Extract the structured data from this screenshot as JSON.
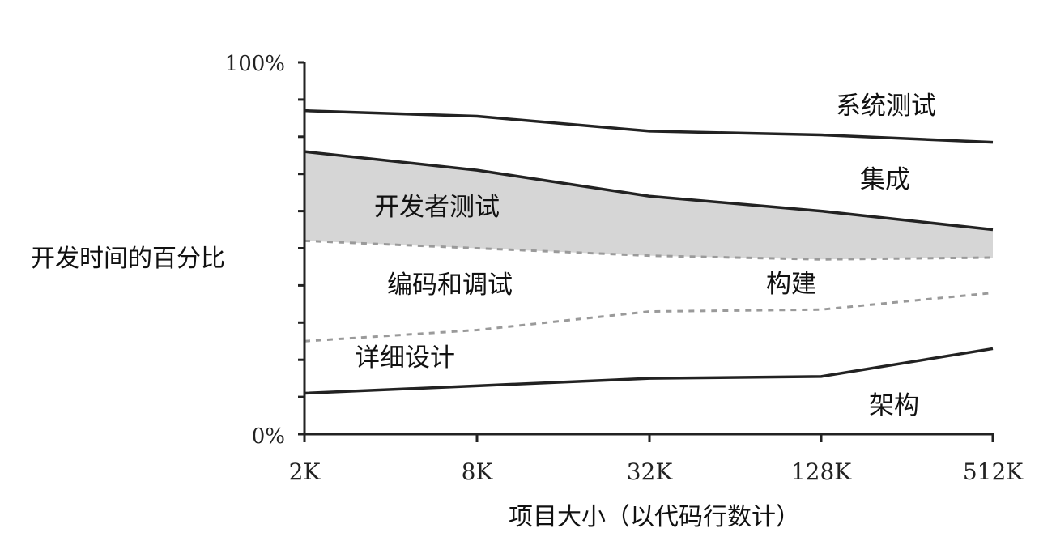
{
  "chart_data": {
    "type": "area",
    "title": "",
    "xlabel": "项目大小（以代码行数计）",
    "ylabel": "开发时间的百分比",
    "x_categories": [
      "2K",
      "8K",
      "32K",
      "128K",
      "512K"
    ],
    "y_range": [
      0,
      100
    ],
    "y_tick_labels": {
      "bottom": "0%",
      "top": "100%"
    },
    "boundaries": [
      {
        "name": "architecture_top",
        "style": "solid",
        "values": [
          11,
          13,
          15,
          15.5,
          23
        ]
      },
      {
        "name": "detailed_design_top",
        "style": "dashed",
        "values": [
          25,
          28,
          33,
          33.5,
          38
        ]
      },
      {
        "name": "coding_top",
        "style": "dashed",
        "values": [
          52,
          50,
          48,
          47,
          47.5
        ]
      },
      {
        "name": "developer_test_top",
        "style": "solid",
        "values": [
          76,
          71,
          64,
          60,
          55
        ]
      },
      {
        "name": "integration_top",
        "style": "solid",
        "values": [
          87,
          85.5,
          81.5,
          80.5,
          78.5
        ]
      }
    ],
    "regions": [
      {
        "label": "系统测试",
        "fill": "#ffffff"
      },
      {
        "label": "集成",
        "fill": "#ffffff"
      },
      {
        "label": "开发者测试",
        "fill": "#d6d6d6"
      },
      {
        "label": "编码和调试",
        "fill": "#ffffff"
      },
      {
        "label": "构建",
        "fill": "#ffffff"
      },
      {
        "label": "详细设计",
        "fill": "#ffffff"
      },
      {
        "label": "架构",
        "fill": "#ffffff"
      }
    ],
    "grid": false,
    "legend": "none"
  }
}
